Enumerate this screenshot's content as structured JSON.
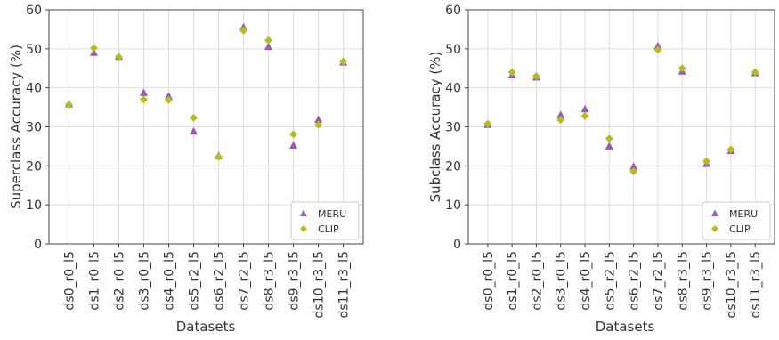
{
  "colors": {
    "meru": "#9b59b6",
    "clip": "#b5bd1e",
    "grid": "#dddddd",
    "axis": "#444444"
  },
  "chart_data": [
    {
      "type": "scatter",
      "xlabel": "Datasets",
      "ylabel": "Superclass Accuracy (%)",
      "ylim": [
        0,
        60
      ],
      "yticks": [
        "0",
        "10",
        "20",
        "30",
        "40",
        "50",
        "60"
      ],
      "grid": true,
      "legend": "bottom-right",
      "categories": [
        "ds0_r0_l5",
        "ds1_r0_l5",
        "ds2_r0_l5",
        "ds3_r0_l5",
        "ds4_r0_l5",
        "ds5_r2_l5",
        "ds6_r2_l5",
        "ds7_r2_l5",
        "ds8_r3_l5",
        "ds9_r3_l5",
        "ds10_r3_l5",
        "ds11_r3_l5"
      ],
      "series": [
        {
          "name": "MERU",
          "marker": "triangle",
          "values": [
            35.8,
            49.0,
            48.0,
            38.7,
            37.8,
            28.8,
            22.5,
            55.5,
            50.5,
            25.2,
            31.8,
            46.5
          ]
        },
        {
          "name": "CLIP",
          "marker": "diamond",
          "values": [
            35.7,
            50.2,
            47.9,
            37.0,
            36.9,
            32.3,
            22.3,
            54.7,
            52.2,
            28.1,
            30.5,
            46.8
          ]
        }
      ]
    },
    {
      "type": "scatter",
      "xlabel": "Datasets",
      "ylabel": "Subclass Accuracy (%)",
      "ylim": [
        0,
        60
      ],
      "yticks": [
        "0",
        "10",
        "20",
        "30",
        "40",
        "50",
        "60"
      ],
      "grid": true,
      "legend": "bottom-right",
      "categories": [
        "ds0_r0_l5",
        "ds1_r0_l5",
        "ds2_r0_l5",
        "ds3_r0_l5",
        "ds4_r0_l5",
        "ds5_r2_l5",
        "ds6_r2_l5",
        "ds7_r2_l5",
        "ds8_r3_l5",
        "ds9_r3_l5",
        "ds10_r3_l5",
        "ds11_r3_l5"
      ],
      "series": [
        {
          "name": "MERU",
          "marker": "triangle",
          "values": [
            30.5,
            43.2,
            42.7,
            33.0,
            34.5,
            25.0,
            19.8,
            50.7,
            44.2,
            20.5,
            23.8,
            43.8
          ]
        },
        {
          "name": "CLIP",
          "marker": "diamond",
          "values": [
            30.8,
            44.0,
            43.0,
            31.8,
            32.8,
            27.0,
            18.6,
            49.8,
            45.0,
            21.2,
            24.2,
            44.0
          ]
        }
      ]
    }
  ]
}
